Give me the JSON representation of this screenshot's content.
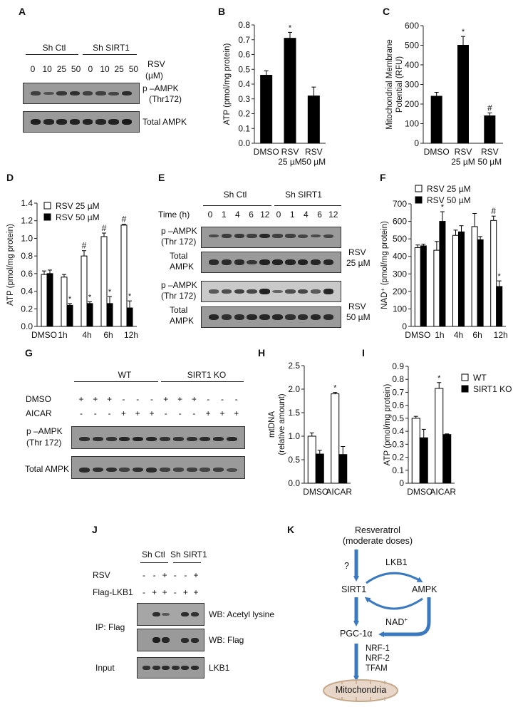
{
  "panels": {
    "A": {
      "label": "A",
      "groups": [
        "Sh Ctl",
        "Sh SIRT1"
      ],
      "rsv_label": "RSV",
      "rsv_unit": "(µM)",
      "doses": [
        "0",
        "10",
        "25",
        "50",
        "0",
        "10",
        "25",
        "50"
      ],
      "rows": [
        "p –AMPK",
        "(Thr172)",
        "Total AMPK"
      ],
      "pampk_intensity": [
        0.55,
        0.35,
        0.65,
        0.75,
        0.55,
        0.55,
        0.5,
        0.8
      ],
      "total_intensity": [
        0.95,
        0.85,
        0.9,
        0.9,
        0.9,
        0.85,
        0.9,
        1.0
      ]
    },
    "E": {
      "label": "E",
      "groups": [
        "Sh Ctl",
        "Sh SIRT1"
      ],
      "time_label": "Time (h)",
      "times": [
        "0",
        "1",
        "4",
        "6",
        "12",
        "0",
        "1",
        "4",
        "6",
        "12"
      ],
      "row_labels": {
        "pampk1": "p –AMPK",
        "pampk2": "(Thr 172)",
        "total1": "Total",
        "total2": "AMPK"
      },
      "conditions": [
        {
          "l1": "RSV",
          "l2": "25 µM"
        },
        {
          "l1": "RSV",
          "l2": "50 µM"
        }
      ],
      "pampk25": [
        0.45,
        0.6,
        0.65,
        0.55,
        0.85,
        0.55,
        0.55,
        0.5,
        0.45,
        0.5
      ],
      "total25": [
        0.8,
        0.8,
        0.8,
        0.65,
        0.9,
        0.9,
        0.9,
        0.9,
        0.85,
        0.85
      ],
      "pampk50": [
        0.45,
        0.55,
        0.65,
        0.6,
        0.95,
        0.35,
        0.55,
        0.6,
        0.45,
        0.9
      ],
      "total50": [
        0.85,
        0.75,
        0.8,
        0.85,
        0.85,
        0.85,
        0.75,
        0.8,
        0.85,
        0.8
      ]
    },
    "G": {
      "label": "G",
      "groups": [
        "WT",
        "SIRT1 KO"
      ],
      "dmso_label": "DMSO",
      "aicar_label": "AICAR",
      "dmso": [
        "+",
        "+",
        "+",
        "-",
        "-",
        "-",
        "+",
        "+",
        "+",
        "-",
        "-",
        "-"
      ],
      "aicar": [
        "-",
        "-",
        "-",
        "+",
        "+",
        "+",
        "-",
        "-",
        "-",
        "+",
        "+",
        "+"
      ],
      "rows": [
        "p –AMPK",
        "(Thr 172)",
        "Total AMPK"
      ],
      "pampk_intensity": [
        0.75,
        0.75,
        0.7,
        0.85,
        0.9,
        0.85,
        0.7,
        0.7,
        0.75,
        0.8,
        0.8,
        0.85
      ],
      "total_intensity": [
        0.8,
        0.75,
        0.75,
        0.55,
        0.75,
        0.8,
        0.55,
        0.5,
        0.55,
        0.5,
        0.55,
        0.4
      ]
    },
    "J": {
      "label": "J",
      "groups": [
        "Sh Ctl",
        "Sh SIRT1"
      ],
      "rsv_label": "RSV",
      "flag_label": "Flag-LKB1",
      "rsv": [
        "-",
        "-",
        "+",
        "-",
        "-",
        "+"
      ],
      "flag": [
        "-",
        "+",
        "+",
        "-",
        "+",
        "+"
      ],
      "ip_label": "IP: Flag",
      "input_label": "Input",
      "rows": [
        "WB: Acetyl lysine",
        "WB: Flag",
        "LKB1"
      ],
      "acetyl": [
        0,
        0.8,
        0.3,
        0,
        0.8,
        0.75
      ],
      "flagwb": [
        0,
        0.95,
        0.85,
        0,
        0.8,
        0.8
      ],
      "lkb1": [
        0.7,
        0.75,
        0.8,
        0.75,
        0.8,
        0.8
      ]
    },
    "K": {
      "label": "K",
      "nodes": {
        "top1": "Resveratrol",
        "top2": "(moderate doses)",
        "question": "?",
        "lkb1": "LKB1",
        "sirt1": "SIRT1",
        "ampk": "AMPK",
        "nad": "NAD",
        "nad_sup": "+",
        "pgc": "PGC-1α",
        "nrf1": "NRF-1",
        "nrf2": "NRF-2",
        "tfam": "TFAM",
        "mito": "Mitochondria"
      },
      "arrow_color": "#3a78c0",
      "mito_fill": "#e8d7c8",
      "mito_stroke": "#c7a98c"
    }
  },
  "chart_data": [
    {
      "panel": "B",
      "type": "bar",
      "title": "",
      "categories": [
        "DMSO",
        "RSV 25 µM",
        "RSV 50 µM"
      ],
      "xlabels_line1": [
        "DMSO",
        "RSV",
        "RSV"
      ],
      "xlabels_line2": [
        "",
        "25 µM",
        "50 µM"
      ],
      "values": [
        0.46,
        0.71,
        0.32
      ],
      "errors": [
        0.03,
        0.04,
        0.06
      ],
      "annotations": [
        "",
        "*",
        ""
      ],
      "ylabel": "ATP (pmol/mg protein)",
      "ylim": [
        0,
        0.8
      ],
      "yticks": [
        "0.0",
        "0.1",
        "0.2",
        "0.3",
        "0.4",
        "0.5",
        "0.6",
        "0.7",
        "0.8"
      ],
      "grid": false,
      "bar_color": "#000000"
    },
    {
      "panel": "C",
      "type": "bar",
      "categories": [
        "DMSO",
        "RSV 25 µM",
        "RSV 50 µM"
      ],
      "xlabels_line1": [
        "DMSO",
        "RSV",
        "RSV"
      ],
      "xlabels_line2": [
        "",
        "25 µM",
        "50 µM"
      ],
      "values": [
        240,
        500,
        140
      ],
      "errors": [
        20,
        45,
        15
      ],
      "annotations": [
        "",
        "*",
        "#"
      ],
      "ylabel": "Mitochondrial Membrane",
      "ylabel2": "Potential (RFU)",
      "ylim": [
        0,
        600
      ],
      "yticks": [
        "0",
        "100",
        "200",
        "300",
        "400",
        "500",
        "600"
      ],
      "grid": false,
      "bar_color": "#000000"
    },
    {
      "panel": "D",
      "type": "bar",
      "categories": [
        "DMSO",
        "1h",
        "4h",
        "6h",
        "12h"
      ],
      "series": [
        {
          "name": "RSV 25 µM",
          "color": "#ffffff",
          "values": [
            0.59,
            0.56,
            0.8,
            1.02,
            1.15
          ],
          "errors": [
            0.04,
            0.03,
            0.06,
            0.04,
            0.01
          ],
          "annotations": [
            "",
            "",
            "#",
            "#",
            "#"
          ]
        },
        {
          "name": "RSV 50 µM",
          "color": "#000000",
          "values": [
            0.6,
            0.24,
            0.26,
            0.26,
            0.21
          ],
          "errors": [
            0.04,
            0.02,
            0.02,
            0.08,
            0.08
          ],
          "annotations": [
            "",
            "*",
            "*",
            "*",
            "*"
          ]
        }
      ],
      "ylabel": "ATP (pmol/mg protein)",
      "ylim": [
        0,
        1.4
      ],
      "yticks": [
        "0.0",
        "0.2",
        "0.4",
        "0.6",
        "0.8",
        "1.0",
        "1.2",
        "1.4"
      ],
      "legend_position": "top-left",
      "grid": false
    },
    {
      "panel": "F",
      "type": "bar",
      "categories": [
        "DMSO",
        "1h",
        "4h",
        "6h",
        "12h"
      ],
      "series": [
        {
          "name": "RSV 25 µM",
          "color": "#ffffff",
          "values": [
            450,
            435,
            520,
            570,
            605
          ],
          "errors": [
            15,
            50,
            30,
            75,
            25
          ],
          "annotations": [
            "",
            "",
            "",
            "",
            "#"
          ]
        },
        {
          "name": "RSV 50 µM",
          "color": "#000000",
          "values": [
            460,
            600,
            540,
            495,
            228
          ],
          "errors": [
            10,
            55,
            35,
            18,
            32
          ],
          "annotations": [
            "",
            "*",
            "",
            "",
            "*"
          ]
        }
      ],
      "ylabel": "NAD⁺ (pmol/mg protein)",
      "ylim": [
        0,
        700
      ],
      "yticks": [
        "0",
        "100",
        "200",
        "300",
        "400",
        "500",
        "600",
        "700"
      ],
      "legend_position": "top",
      "grid": false
    },
    {
      "panel": "H",
      "type": "bar",
      "categories": [
        "DMSO",
        "AICAR"
      ],
      "series": [
        {
          "name": "WT",
          "color": "#ffffff",
          "values": [
            1.0,
            1.9
          ],
          "errors": [
            0.07,
            0.03
          ],
          "annotations": [
            "",
            "*"
          ]
        },
        {
          "name": "SIRT1 KO",
          "color": "#000000",
          "values": [
            0.62,
            0.61
          ],
          "errors": [
            0.08,
            0.17
          ],
          "annotations": [
            "",
            ""
          ]
        }
      ],
      "ylabel": "mtDNA",
      "ylabel2": "(relative amount)",
      "ylim": [
        0,
        2.5
      ],
      "yticks": [
        "0.0",
        "0.5",
        "1.0",
        "1.5",
        "2.0",
        "2.5"
      ],
      "grid": false
    },
    {
      "panel": "I",
      "type": "bar",
      "categories": [
        "DMSO",
        "AICAR"
      ],
      "series": [
        {
          "name": "WT",
          "color": "#ffffff",
          "values": [
            0.5,
            0.73
          ],
          "errors": [
            0.015,
            0.045
          ],
          "annotations": [
            "",
            "*"
          ]
        },
        {
          "name": "SIRT1 KO",
          "color": "#000000",
          "values": [
            0.35,
            0.375
          ],
          "errors": [
            0.065,
            0.005
          ],
          "annotations": [
            "",
            ""
          ]
        }
      ],
      "ylabel": "ATP (pmol/mg protein)",
      "ylim": [
        0,
        0.9
      ],
      "yticks": [
        "0",
        "0.1",
        "0.2",
        "0.3",
        "0.4",
        "0.5",
        "0.6",
        "0.7",
        "0.8",
        "0.9"
      ],
      "legend_position": "right",
      "grid": false
    }
  ]
}
